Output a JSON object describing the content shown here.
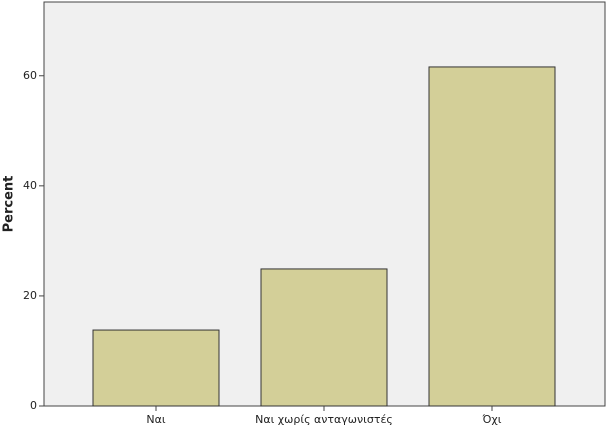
{
  "chart_data": {
    "type": "bar",
    "y_label": "Percent",
    "categories": [
      "Ναι",
      "Ναι χωρίς ανταγωνιστές",
      "Όχι"
    ],
    "values": [
      13.8,
      24.9,
      61.6
    ],
    "color": "#d3cf98",
    "ylim": [
      0,
      73.4
    ],
    "yticks": [
      0,
      20,
      40,
      60
    ]
  }
}
